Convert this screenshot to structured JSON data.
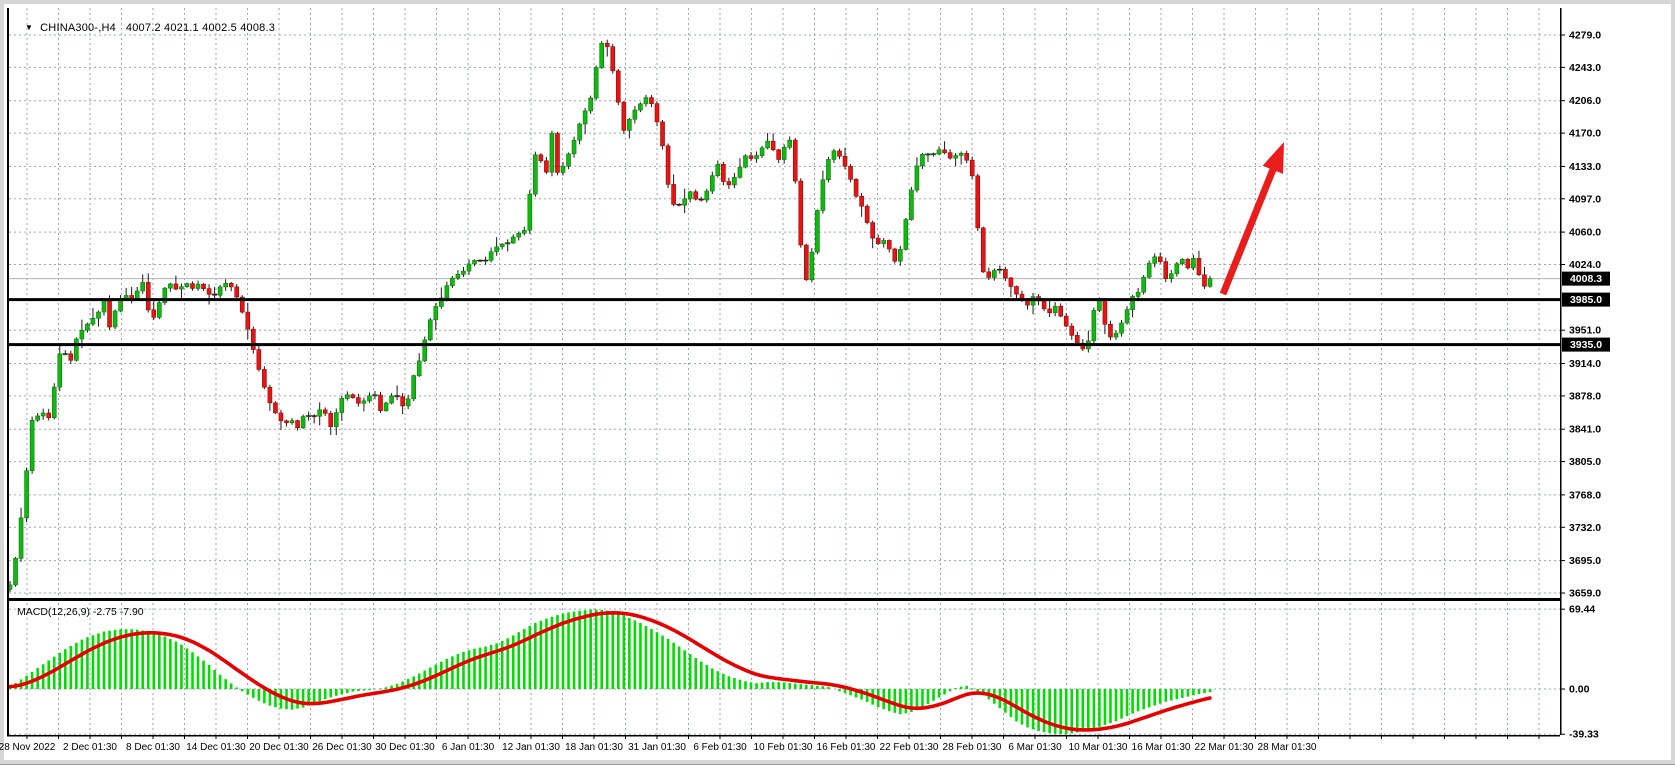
{
  "header": {
    "dropdown_icon": "▼",
    "title": "CHINA300-,H4",
    "ohlc_text": "4007.2 4021.1 4002.5 4008.3"
  },
  "indicator_label": "MACD(12,26,9) -2.75 -7.90",
  "price_axis": {
    "ticks": [
      {
        "label": "4279.0",
        "price": 4279.0
      },
      {
        "label": "4243.0",
        "price": 4243.0
      },
      {
        "label": "4206.0",
        "price": 4206.0
      },
      {
        "label": "4170.0",
        "price": 4170.0
      },
      {
        "label": "4133.0",
        "price": 4133.0
      },
      {
        "label": "4097.0",
        "price": 4097.0
      },
      {
        "label": "4060.0",
        "price": 4060.0
      },
      {
        "label": "4024.0",
        "price": 4024.0
      },
      {
        "label": "3951.0",
        "price": 3951.0
      },
      {
        "label": "3914.0",
        "price": 3914.0
      },
      {
        "label": "3878.0",
        "price": 3878.0
      },
      {
        "label": "3841.0",
        "price": 3841.0
      },
      {
        "label": "3805.0",
        "price": 3805.0
      },
      {
        "label": "3768.0",
        "price": 3768.0
      },
      {
        "label": "3732.0",
        "price": 3732.0
      },
      {
        "label": "3695.0",
        "price": 3695.0
      },
      {
        "label": "3659.0",
        "price": 3659.0
      }
    ],
    "highlighted": [
      {
        "label": "4008.3",
        "price": 4008.3,
        "kind": "last-price"
      },
      {
        "label": "3985.0",
        "price": 3985.0,
        "kind": "level"
      },
      {
        "label": "3935.0",
        "price": 3935.0,
        "kind": "level"
      }
    ]
  },
  "time_axis": {
    "labels": [
      "28 Nov 2022",
      "2 Dec 01:30",
      "8 Dec 01:30",
      "14 Dec 01:30",
      "20 Dec 01:30",
      "26 Dec 01:30",
      "30 Dec 01:30",
      "6 Jan 01:30",
      "12 Jan 01:30",
      "18 Jan 01:30",
      "31 Jan 01:30",
      "6 Feb 01:30",
      "10 Feb 01:30",
      "16 Feb 01:30",
      "22 Feb 01:30",
      "28 Feb 01:30",
      "6 Mar 01:30",
      "10 Mar 01:30",
      "16 Mar 01:30",
      "22 Mar 01:30",
      "28 Mar 01:30"
    ]
  },
  "macd_axis": {
    "ticks": [
      {
        "label": "69.44",
        "value": 69.44
      },
      {
        "label": "0.00",
        "value": 0.0
      },
      {
        "label": "-39.33",
        "value": -39.33
      }
    ]
  },
  "colors": {
    "grid": "#9aa6b4",
    "candle_up": "#12b812",
    "candle_up_border": "#077907",
    "candle_down": "#e81414",
    "candle_down_border": "#8e0a0a",
    "wick": "#1a1a1a",
    "macd_hist": "#00dd00",
    "macd_signal": "#e60000",
    "level_line": "#000000",
    "last_price_line": "#b0b0b0",
    "arrow": "#ea1c1c",
    "axis_text": "#000000",
    "label_bg": "#000000",
    "label_fg": "#ffffff",
    "border": "#000000"
  },
  "chart_data": {
    "type": "candlestick",
    "symbol": "CHINA300",
    "timeframe": "H4",
    "title": "CHINA300-,H4",
    "last_ohlc": {
      "open": 4007.2,
      "high": 4021.1,
      "low": 4002.5,
      "close": 4008.3
    },
    "last_price": 4008.3,
    "horizontal_levels": [
      3985.0,
      3935.0
    ],
    "y_axis_range": [
      3659.0,
      4279.0
    ],
    "macd": {
      "params": "12,26,9",
      "main_value": -2.75,
      "signal_value": -7.9,
      "range": [
        -39.33,
        69.44
      ],
      "histogram_anchors": [
        [
          6,
          2
        ],
        [
          20,
          10
        ],
        [
          40,
          22
        ],
        [
          60,
          34
        ],
        [
          80,
          44
        ],
        [
          100,
          50
        ],
        [
          115,
          52
        ],
        [
          130,
          52
        ],
        [
          145,
          50
        ],
        [
          160,
          46
        ],
        [
          175,
          40
        ],
        [
          190,
          31
        ],
        [
          205,
          21
        ],
        [
          218,
          11
        ],
        [
          230,
          3
        ],
        [
          240,
          -3
        ],
        [
          252,
          -9
        ],
        [
          264,
          -14
        ],
        [
          276,
          -17
        ],
        [
          288,
          -18
        ],
        [
          300,
          -16
        ],
        [
          312,
          -12
        ],
        [
          324,
          -8
        ],
        [
          336,
          -5
        ],
        [
          350,
          -2
        ],
        [
          365,
          -1
        ],
        [
          380,
          1
        ],
        [
          395,
          5
        ],
        [
          410,
          11
        ],
        [
          425,
          18
        ],
        [
          440,
          25
        ],
        [
          455,
          31
        ],
        [
          470,
          35
        ],
        [
          482,
          37
        ],
        [
          494,
          40
        ],
        [
          506,
          45
        ],
        [
          518,
          51
        ],
        [
          530,
          57
        ],
        [
          545,
          62
        ],
        [
          560,
          66
        ],
        [
          575,
          68
        ],
        [
          590,
          69.4
        ],
        [
          605,
          68
        ],
        [
          620,
          64
        ],
        [
          635,
          58
        ],
        [
          650,
          51
        ],
        [
          665,
          43
        ],
        [
          680,
          34
        ],
        [
          695,
          25
        ],
        [
          710,
          17
        ],
        [
          725,
          11
        ],
        [
          740,
          7
        ],
        [
          752,
          5
        ],
        [
          764,
          6
        ],
        [
          776,
          6
        ],
        [
          788,
          5
        ],
        [
          800,
          4
        ],
        [
          812,
          3
        ],
        [
          824,
          2
        ],
        [
          836,
          -2
        ],
        [
          848,
          -6
        ],
        [
          860,
          -10
        ],
        [
          872,
          -15
        ],
        [
          884,
          -19
        ],
        [
          896,
          -22
        ],
        [
          908,
          -20
        ],
        [
          920,
          -15
        ],
        [
          932,
          -9
        ],
        [
          942,
          -4
        ],
        [
          952,
          1
        ],
        [
          962,
          3
        ],
        [
          972,
          -1
        ],
        [
          982,
          -7
        ],
        [
          992,
          -14
        ],
        [
          1002,
          -21
        ],
        [
          1012,
          -28
        ],
        [
          1022,
          -33
        ],
        [
          1032,
          -36
        ],
        [
          1042,
          -38
        ],
        [
          1052,
          -39
        ],
        [
          1062,
          -39.3
        ],
        [
          1072,
          -38
        ],
        [
          1082,
          -36
        ],
        [
          1092,
          -34
        ],
        [
          1102,
          -31
        ],
        [
          1112,
          -28
        ],
        [
          1122,
          -24
        ],
        [
          1132,
          -20
        ],
        [
          1142,
          -17
        ],
        [
          1152,
          -14
        ],
        [
          1162,
          -11
        ],
        [
          1172,
          -9
        ],
        [
          1182,
          -7
        ],
        [
          1192,
          -5
        ],
        [
          1200,
          -3.5
        ],
        [
          1206,
          -2.75
        ]
      ]
    },
    "price_path_anchors": [
      [
        6,
        3668
      ],
      [
        12,
        3700
      ],
      [
        17,
        3742
      ],
      [
        21,
        3775
      ],
      [
        27,
        3850
      ],
      [
        34,
        3856
      ],
      [
        41,
        3860
      ],
      [
        47,
        3850
      ],
      [
        53,
        3920
      ],
      [
        59,
        3930
      ],
      [
        66,
        3914
      ],
      [
        73,
        3944
      ],
      [
        80,
        3954
      ],
      [
        87,
        3962
      ],
      [
        94,
        3970
      ],
      [
        100,
        3985
      ],
      [
        106,
        3952
      ],
      [
        113,
        3980
      ],
      [
        120,
        3992
      ],
      [
        127,
        3984
      ],
      [
        134,
        3996
      ],
      [
        141,
        4008
      ],
      [
        146,
        3955
      ],
      [
        153,
        3974
      ],
      [
        160,
        3997
      ],
      [
        167,
        4003
      ],
      [
        174,
        3994
      ],
      [
        181,
        4005
      ],
      [
        188,
        3997
      ],
      [
        195,
        4003
      ],
      [
        202,
        3994
      ],
      [
        209,
        3987
      ],
      [
        216,
        3999
      ],
      [
        223,
        4004
      ],
      [
        230,
        3996
      ],
      [
        238,
        3972
      ],
      [
        245,
        3948
      ],
      [
        252,
        3918
      ],
      [
        259,
        3892
      ],
      [
        266,
        3870
      ],
      [
        273,
        3856
      ],
      [
        280,
        3846
      ],
      [
        287,
        3852
      ],
      [
        294,
        3842
      ],
      [
        301,
        3860
      ],
      [
        308,
        3852
      ],
      [
        315,
        3863
      ],
      [
        322,
        3858
      ],
      [
        328,
        3840
      ],
      [
        335,
        3872
      ],
      [
        342,
        3880
      ],
      [
        349,
        3876
      ],
      [
        356,
        3868
      ],
      [
        363,
        3876
      ],
      [
        370,
        3882
      ],
      [
        377,
        3860
      ],
      [
        384,
        3874
      ],
      [
        391,
        3882
      ],
      [
        398,
        3866
      ],
      [
        404,
        3874
      ],
      [
        410,
        3902
      ],
      [
        417,
        3922
      ],
      [
        424,
        3956
      ],
      [
        431,
        3976
      ],
      [
        438,
        3988
      ],
      [
        445,
        4006
      ],
      [
        452,
        4012
      ],
      [
        459,
        4016
      ],
      [
        466,
        4026
      ],
      [
        473,
        4030
      ],
      [
        480,
        4026
      ],
      [
        487,
        4038
      ],
      [
        495,
        4046
      ],
      [
        504,
        4048
      ],
      [
        512,
        4058
      ],
      [
        520,
        4060
      ],
      [
        528,
        4118
      ],
      [
        534,
        4168
      ],
      [
        540,
        4108
      ],
      [
        548,
        4170
      ],
      [
        554,
        4122
      ],
      [
        562,
        4140
      ],
      [
        570,
        4162
      ],
      [
        578,
        4188
      ],
      [
        586,
        4205
      ],
      [
        592,
        4242
      ],
      [
        600,
        4281
      ],
      [
        608,
        4244
      ],
      [
        614,
        4206
      ],
      [
        620,
        4172
      ],
      [
        628,
        4192
      ],
      [
        636,
        4202
      ],
      [
        644,
        4212
      ],
      [
        650,
        4196
      ],
      [
        658,
        4160
      ],
      [
        666,
        4098
      ],
      [
        672,
        4086
      ],
      [
        680,
        4096
      ],
      [
        687,
        4106
      ],
      [
        694,
        4092
      ],
      [
        701,
        4100
      ],
      [
        708,
        4122
      ],
      [
        715,
        4138
      ],
      [
        721,
        4108
      ],
      [
        728,
        4116
      ],
      [
        735,
        4130
      ],
      [
        742,
        4146
      ],
      [
        749,
        4140
      ],
      [
        756,
        4150
      ],
      [
        763,
        4162
      ],
      [
        770,
        4150
      ],
      [
        777,
        4136
      ],
      [
        784,
        4176
      ],
      [
        791,
        4120
      ],
      [
        798,
        4030
      ],
      [
        804,
        3998
      ],
      [
        810,
        4060
      ],
      [
        817,
        4110
      ],
      [
        824,
        4140
      ],
      [
        831,
        4152
      ],
      [
        838,
        4140
      ],
      [
        845,
        4124
      ],
      [
        852,
        4100
      ],
      [
        859,
        4086
      ],
      [
        866,
        4060
      ],
      [
        872,
        4045
      ],
      [
        879,
        4052
      ],
      [
        886,
        4040
      ],
      [
        893,
        4022
      ],
      [
        899,
        4056
      ],
      [
        906,
        4100
      ],
      [
        913,
        4134
      ],
      [
        920,
        4150
      ],
      [
        927,
        4144
      ],
      [
        934,
        4152
      ],
      [
        941,
        4148
      ],
      [
        948,
        4140
      ],
      [
        955,
        4150
      ],
      [
        962,
        4142
      ],
      [
        969,
        4120
      ],
      [
        975,
        4050
      ],
      [
        981,
        4002
      ],
      [
        988,
        4016
      ],
      [
        995,
        4020
      ],
      [
        1002,
        4008
      ],
      [
        1009,
        3996
      ],
      [
        1016,
        3986
      ],
      [
        1023,
        3978
      ],
      [
        1030,
        3990
      ],
      [
        1037,
        3980
      ],
      [
        1044,
        3968
      ],
      [
        1051,
        3978
      ],
      [
        1058,
        3964
      ],
      [
        1065,
        3950
      ],
      [
        1072,
        3938
      ],
      [
        1079,
        3930
      ],
      [
        1086,
        3942
      ],
      [
        1093,
        3998
      ],
      [
        1100,
        3960
      ],
      [
        1107,
        3942
      ],
      [
        1114,
        3950
      ],
      [
        1121,
        3968
      ],
      [
        1128,
        3988
      ],
      [
        1135,
        3994
      ],
      [
        1142,
        4018
      ],
      [
        1149,
        4034
      ],
      [
        1156,
        4028
      ],
      [
        1163,
        4004
      ],
      [
        1170,
        4020
      ],
      [
        1177,
        4032
      ],
      [
        1184,
        4020
      ],
      [
        1191,
        4034
      ],
      [
        1198,
        3996
      ],
      [
        1206,
        4008.3
      ]
    ],
    "annotation_arrow": {
      "from_xy": [
        1219,
        290
      ],
      "to_xy": [
        1280,
        138
      ]
    }
  }
}
